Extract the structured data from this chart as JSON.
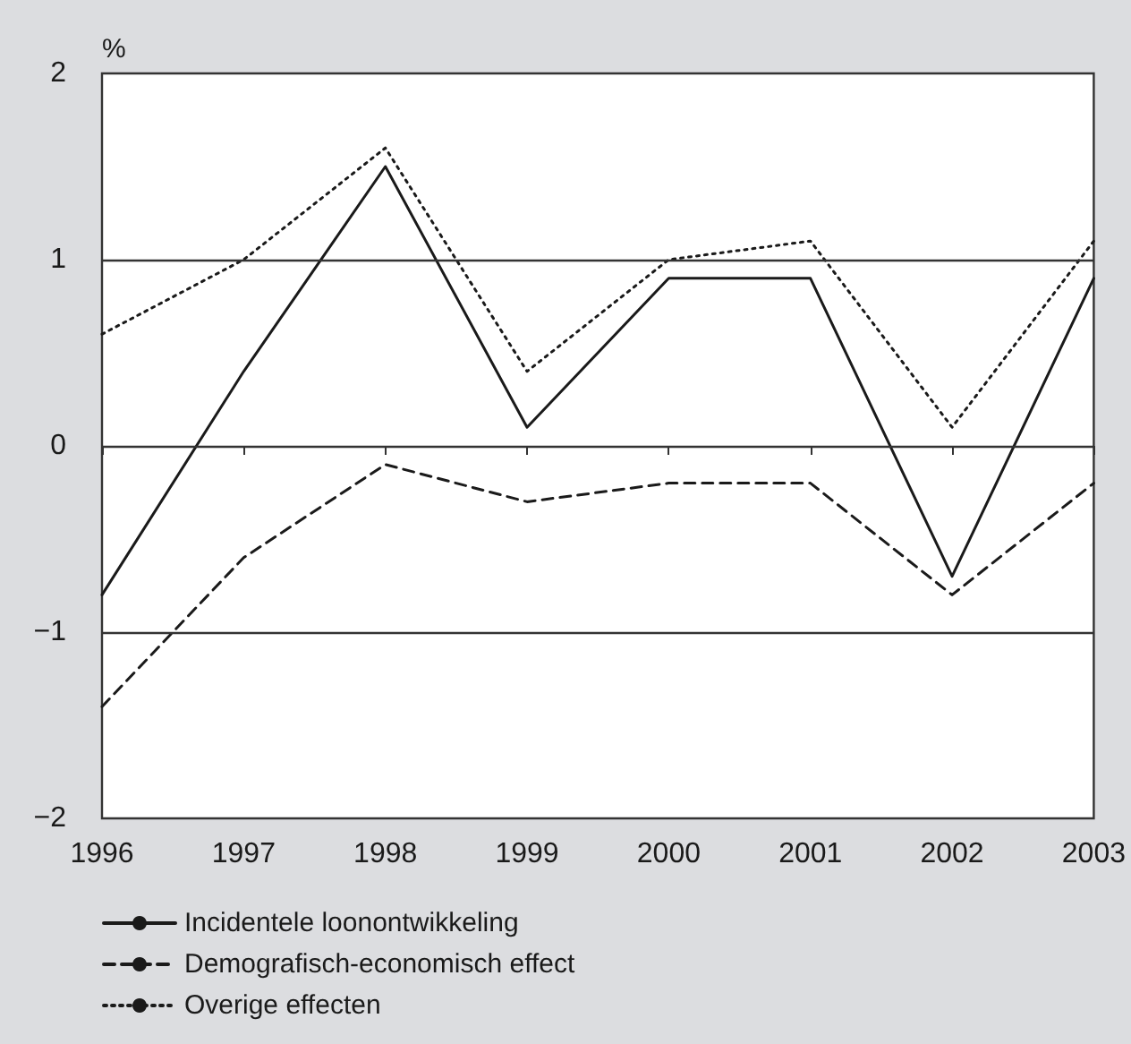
{
  "chart_data": {
    "type": "line",
    "ylabel": "%",
    "categories": [
      "1996",
      "1997",
      "1998",
      "1999",
      "2000",
      "2001",
      "2002",
      "2003"
    ],
    "series": [
      {
        "name": "Incidentele loonontwikkeling",
        "color": "#1a1a1a",
        "line_style": "solid",
        "values": [
          -0.8,
          0.4,
          1.5,
          0.1,
          0.9,
          0.9,
          -0.7,
          0.9
        ]
      },
      {
        "name": "Demografisch-economisch effect",
        "color": "#1a1a1a",
        "line_style": "dashed",
        "values": [
          -1.4,
          -0.6,
          -0.1,
          -0.3,
          -0.2,
          -0.2,
          -0.8,
          -0.2
        ]
      },
      {
        "name": "Overige effecten",
        "color": "#1a1a1a",
        "line_style": "dotted",
        "values": [
          0.6,
          1.0,
          1.6,
          0.4,
          1.0,
          1.1,
          0.1,
          1.1
        ]
      }
    ],
    "ylim": [
      -2,
      2
    ],
    "yticks": [
      {
        "value": -2,
        "label": "−2"
      },
      {
        "value": -1,
        "label": "−1"
      },
      0,
      1,
      2
    ],
    "grid": "y",
    "legend": "bottom left",
    "marker": "none"
  }
}
